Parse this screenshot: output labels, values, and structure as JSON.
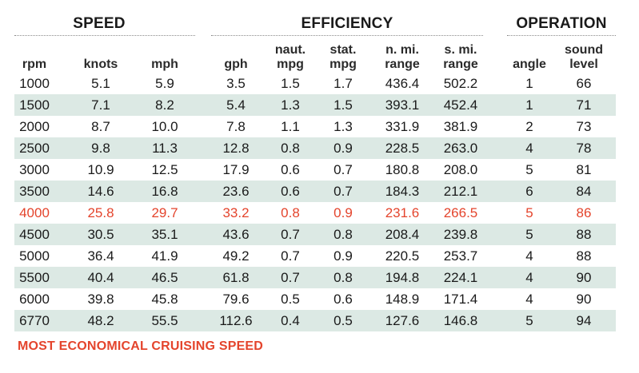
{
  "groups": {
    "speed": "SPEED",
    "efficiency": "EFFICIENCY",
    "operation": "OPERATION"
  },
  "headers": {
    "rpm": [
      "",
      "rpm"
    ],
    "knots": [
      "",
      "knots"
    ],
    "mph": [
      "",
      "mph"
    ],
    "gph": [
      "",
      "gph"
    ],
    "naut_mpg": [
      "naut.",
      "mpg"
    ],
    "stat_mpg": [
      "stat.",
      "mpg"
    ],
    "n_range": [
      "n. mi.",
      "range"
    ],
    "s_range": [
      "s. mi.",
      "range"
    ],
    "angle": [
      "",
      "angle"
    ],
    "sound": [
      "sound",
      "level"
    ]
  },
  "rows": [
    {
      "rpm": "1000",
      "knots": "5.1",
      "mph": "5.9",
      "gph": "3.5",
      "naut_mpg": "1.5",
      "stat_mpg": "1.7",
      "n_range": "436.4",
      "s_range": "502.2",
      "angle": "1",
      "sound": "66",
      "shaded": false,
      "highlight": false
    },
    {
      "rpm": "1500",
      "knots": "7.1",
      "mph": "8.2",
      "gph": "5.4",
      "naut_mpg": "1.3",
      "stat_mpg": "1.5",
      "n_range": "393.1",
      "s_range": "452.4",
      "angle": "1",
      "sound": "71",
      "shaded": true,
      "highlight": false
    },
    {
      "rpm": "2000",
      "knots": "8.7",
      "mph": "10.0",
      "gph": "7.8",
      "naut_mpg": "1.1",
      "stat_mpg": "1.3",
      "n_range": "331.9",
      "s_range": "381.9",
      "angle": "2",
      "sound": "73",
      "shaded": false,
      "highlight": false
    },
    {
      "rpm": "2500",
      "knots": "9.8",
      "mph": "11.3",
      "gph": "12.8",
      "naut_mpg": "0.8",
      "stat_mpg": "0.9",
      "n_range": "228.5",
      "s_range": "263.0",
      "angle": "4",
      "sound": "78",
      "shaded": true,
      "highlight": false
    },
    {
      "rpm": "3000",
      "knots": "10.9",
      "mph": "12.5",
      "gph": "17.9",
      "naut_mpg": "0.6",
      "stat_mpg": "0.7",
      "n_range": "180.8",
      "s_range": "208.0",
      "angle": "5",
      "sound": "81",
      "shaded": false,
      "highlight": false
    },
    {
      "rpm": "3500",
      "knots": "14.6",
      "mph": "16.8",
      "gph": "23.6",
      "naut_mpg": "0.6",
      "stat_mpg": "0.7",
      "n_range": "184.3",
      "s_range": "212.1",
      "angle": "6",
      "sound": "84",
      "shaded": true,
      "highlight": false
    },
    {
      "rpm": "4000",
      "knots": "25.8",
      "mph": "29.7",
      "gph": "33.2",
      "naut_mpg": "0.8",
      "stat_mpg": "0.9",
      "n_range": "231.6",
      "s_range": "266.5",
      "angle": "5",
      "sound": "86",
      "shaded": false,
      "highlight": true
    },
    {
      "rpm": "4500",
      "knots": "30.5",
      "mph": "35.1",
      "gph": "43.6",
      "naut_mpg": "0.7",
      "stat_mpg": "0.8",
      "n_range": "208.4",
      "s_range": "239.8",
      "angle": "5",
      "sound": "88",
      "shaded": true,
      "highlight": false
    },
    {
      "rpm": "5000",
      "knots": "36.4",
      "mph": "41.9",
      "gph": "49.2",
      "naut_mpg": "0.7",
      "stat_mpg": "0.9",
      "n_range": "220.5",
      "s_range": "253.7",
      "angle": "4",
      "sound": "88",
      "shaded": false,
      "highlight": false
    },
    {
      "rpm": "5500",
      "knots": "40.4",
      "mph": "46.5",
      "gph": "61.8",
      "naut_mpg": "0.7",
      "stat_mpg": "0.8",
      "n_range": "194.8",
      "s_range": "224.1",
      "angle": "4",
      "sound": "90",
      "shaded": true,
      "highlight": false
    },
    {
      "rpm": "6000",
      "knots": "39.8",
      "mph": "45.8",
      "gph": "79.6",
      "naut_mpg": "0.5",
      "stat_mpg": "0.6",
      "n_range": "148.9",
      "s_range": "171.4",
      "angle": "4",
      "sound": "90",
      "shaded": false,
      "highlight": false
    },
    {
      "rpm": "6770",
      "knots": "48.2",
      "mph": "55.5",
      "gph": "112.6",
      "naut_mpg": "0.4",
      "stat_mpg": "0.5",
      "n_range": "127.6",
      "s_range": "146.8",
      "angle": "5",
      "sound": "94",
      "shaded": true,
      "highlight": false
    }
  ],
  "footnote": "MOST ECONOMICAL CRUISING SPEED",
  "colors": {
    "highlight": "#e4442c",
    "row_shade": "#dce9e4"
  }
}
